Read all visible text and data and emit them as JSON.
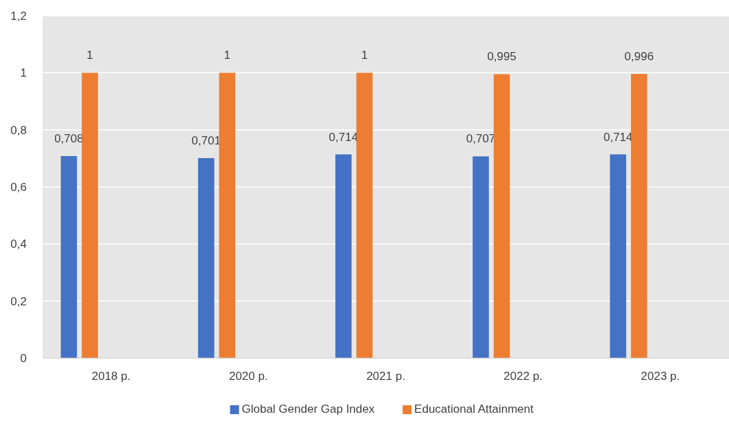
{
  "chart_data": {
    "type": "bar",
    "categories": [
      "2018 р.",
      "2020 р.",
      "2021 р.",
      "2022 р.",
      "2023 р."
    ],
    "series": [
      {
        "name": "Global Gender Gap Index",
        "color": "#4472c4",
        "values": [
          0.708,
          0.701,
          0.714,
          0.707,
          0.714
        ],
        "value_labels": [
          "0,708",
          "0,701",
          "0,714",
          "0,707",
          "0,714"
        ]
      },
      {
        "name": "Educational Attainment",
        "color": "#ed7d31",
        "values": [
          1,
          1,
          1,
          0.995,
          0.996
        ],
        "value_labels": [
          "1",
          "1",
          "1",
          "0,995",
          "0,996"
        ]
      }
    ],
    "ylim": [
      0,
      1.2
    ],
    "yticks": [
      0,
      {
        "value": 0.2,
        "label": "0,2"
      },
      {
        "value": 0.4,
        "label": "0,4"
      },
      {
        "value": 0.6,
        "label": "0,6"
      },
      {
        "value": 0.8,
        "label": "0,8"
      },
      1,
      {
        "value": 1.2,
        "label": "1,2"
      }
    ],
    "grid": "y",
    "legend": "bottom"
  }
}
